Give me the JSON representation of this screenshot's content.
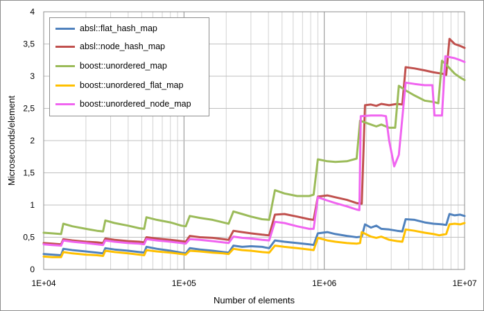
{
  "chart_data": {
    "type": "line",
    "xlabel": "Number of elements",
    "ylabel": "Microseconds/element",
    "xscale": "log",
    "xlim": [
      10000,
      10000000
    ],
    "ylim": [
      0,
      4
    ],
    "x_ticks": [
      {
        "value": 10000,
        "label": "1E+04"
      },
      {
        "value": 100000,
        "label": "1E+05"
      },
      {
        "value": 1000000,
        "label": "1E+06"
      },
      {
        "value": 10000000,
        "label": "1E+07"
      }
    ],
    "y_ticks": [
      {
        "value": 0,
        "label": "0"
      },
      {
        "value": 0.5,
        "label": "0,5"
      },
      {
        "value": 1,
        "label": "1"
      },
      {
        "value": 1.5,
        "label": "1,5"
      },
      {
        "value": 2,
        "label": "2"
      },
      {
        "value": 2.5,
        "label": "2,5"
      },
      {
        "value": 3,
        "label": "3"
      },
      {
        "value": 3.5,
        "label": "3,5"
      },
      {
        "value": 4,
        "label": "4"
      }
    ],
    "grid": true,
    "legend_position": "top-left",
    "series": [
      {
        "name": "absl::flat_hash_map",
        "color": "#4f81bd",
        "points": [
          [
            10000,
            0.24
          ],
          [
            11500,
            0.23
          ],
          [
            13300,
            0.22
          ],
          [
            13800,
            0.32
          ],
          [
            16000,
            0.3
          ],
          [
            20000,
            0.28
          ],
          [
            24000,
            0.26
          ],
          [
            26500,
            0.25
          ],
          [
            27500,
            0.33
          ],
          [
            32000,
            0.31
          ],
          [
            40000,
            0.29
          ],
          [
            48000,
            0.27
          ],
          [
            52000,
            0.26
          ],
          [
            54000,
            0.35
          ],
          [
            64000,
            0.32
          ],
          [
            80000,
            0.29
          ],
          [
            96000,
            0.26
          ],
          [
            103000,
            0.25
          ],
          [
            110000,
            0.33
          ],
          [
            130000,
            0.31
          ],
          [
            160000,
            0.29
          ],
          [
            190000,
            0.27
          ],
          [
            208000,
            0.26
          ],
          [
            225000,
            0.37
          ],
          [
            260000,
            0.35
          ],
          [
            300000,
            0.36
          ],
          [
            360000,
            0.35
          ],
          [
            405000,
            0.33
          ],
          [
            445000,
            0.45
          ],
          [
            520000,
            0.43
          ],
          [
            640000,
            0.41
          ],
          [
            780000,
            0.39
          ],
          [
            840000,
            0.38
          ],
          [
            900000,
            0.56
          ],
          [
            1050000,
            0.58
          ],
          [
            1200000,
            0.55
          ],
          [
            1450000,
            0.52
          ],
          [
            1700000,
            0.5
          ],
          [
            1850000,
            0.51
          ],
          [
            1950000,
            0.7
          ],
          [
            2150000,
            0.65
          ],
          [
            2350000,
            0.68
          ],
          [
            2550000,
            0.63
          ],
          [
            2900000,
            0.62
          ],
          [
            3300000,
            0.6
          ],
          [
            3600000,
            0.59
          ],
          [
            3800000,
            0.78
          ],
          [
            4400000,
            0.77
          ],
          [
            5200000,
            0.73
          ],
          [
            6000000,
            0.71
          ],
          [
            6900000,
            0.7
          ],
          [
            7400000,
            0.69
          ],
          [
            7800000,
            0.86
          ],
          [
            8500000,
            0.84
          ],
          [
            9300000,
            0.85
          ],
          [
            10000000,
            0.83
          ]
        ]
      },
      {
        "name": "absl::node_hash_map",
        "color": "#c0504d",
        "points": [
          [
            10000,
            0.41
          ],
          [
            11500,
            0.4
          ],
          [
            13300,
            0.39
          ],
          [
            13800,
            0.47
          ],
          [
            16000,
            0.45
          ],
          [
            20000,
            0.43
          ],
          [
            24000,
            0.42
          ],
          [
            26500,
            0.41
          ],
          [
            27500,
            0.48
          ],
          [
            32000,
            0.46
          ],
          [
            40000,
            0.44
          ],
          [
            48000,
            0.43
          ],
          [
            52000,
            0.42
          ],
          [
            54000,
            0.5
          ],
          [
            64000,
            0.48
          ],
          [
            80000,
            0.46
          ],
          [
            96000,
            0.44
          ],
          [
            103000,
            0.43
          ],
          [
            110000,
            0.52
          ],
          [
            130000,
            0.5
          ],
          [
            160000,
            0.49
          ],
          [
            190000,
            0.47
          ],
          [
            208000,
            0.46
          ],
          [
            225000,
            0.6
          ],
          [
            260000,
            0.58
          ],
          [
            300000,
            0.56
          ],
          [
            360000,
            0.54
          ],
          [
            405000,
            0.53
          ],
          [
            445000,
            0.85
          ],
          [
            520000,
            0.86
          ],
          [
            640000,
            0.82
          ],
          [
            780000,
            0.78
          ],
          [
            840000,
            0.77
          ],
          [
            900000,
            1.13
          ],
          [
            1050000,
            1.15
          ],
          [
            1200000,
            1.12
          ],
          [
            1450000,
            1.08
          ],
          [
            1700000,
            1.03
          ],
          [
            1850000,
            1.02
          ],
          [
            1950000,
            2.55
          ],
          [
            2150000,
            2.56
          ],
          [
            2350000,
            2.54
          ],
          [
            2550000,
            2.57
          ],
          [
            2900000,
            2.55
          ],
          [
            3300000,
            2.57
          ],
          [
            3600000,
            2.56
          ],
          [
            3800000,
            3.14
          ],
          [
            4400000,
            3.12
          ],
          [
            5200000,
            3.09
          ],
          [
            6000000,
            3.06
          ],
          [
            6900000,
            3.04
          ],
          [
            7400000,
            3.02
          ],
          [
            7800000,
            3.58
          ],
          [
            8500000,
            3.5
          ],
          [
            9300000,
            3.47
          ],
          [
            10000000,
            3.44
          ]
        ]
      },
      {
        "name": "boost::unordered_map",
        "color": "#9bbb59",
        "points": [
          [
            10000,
            0.57
          ],
          [
            11500,
            0.56
          ],
          [
            13300,
            0.55
          ],
          [
            13800,
            0.71
          ],
          [
            16000,
            0.67
          ],
          [
            20000,
            0.63
          ],
          [
            24000,
            0.6
          ],
          [
            26500,
            0.59
          ],
          [
            27500,
            0.76
          ],
          [
            32000,
            0.72
          ],
          [
            40000,
            0.68
          ],
          [
            48000,
            0.64
          ],
          [
            52000,
            0.63
          ],
          [
            54000,
            0.81
          ],
          [
            64000,
            0.77
          ],
          [
            80000,
            0.73
          ],
          [
            96000,
            0.68
          ],
          [
            103000,
            0.67
          ],
          [
            110000,
            0.83
          ],
          [
            130000,
            0.8
          ],
          [
            160000,
            0.77
          ],
          [
            190000,
            0.73
          ],
          [
            208000,
            0.71
          ],
          [
            225000,
            0.9
          ],
          [
            260000,
            0.86
          ],
          [
            300000,
            0.82
          ],
          [
            360000,
            0.78
          ],
          [
            405000,
            0.77
          ],
          [
            445000,
            1.23
          ],
          [
            520000,
            1.18
          ],
          [
            640000,
            1.14
          ],
          [
            780000,
            1.14
          ],
          [
            840000,
            1.16
          ],
          [
            900000,
            1.71
          ],
          [
            1050000,
            1.68
          ],
          [
            1200000,
            1.67
          ],
          [
            1450000,
            1.68
          ],
          [
            1700000,
            1.72
          ],
          [
            1800000,
            2.31
          ],
          [
            2150000,
            2.25
          ],
          [
            2350000,
            2.22
          ],
          [
            2550000,
            2.25
          ],
          [
            2900000,
            2.2
          ],
          [
            3200000,
            2.2
          ],
          [
            3400000,
            2.85
          ],
          [
            3800000,
            2.78
          ],
          [
            4400000,
            2.7
          ],
          [
            5200000,
            2.62
          ],
          [
            6000000,
            2.6
          ],
          [
            6500000,
            2.58
          ],
          [
            6900000,
            3.24
          ],
          [
            7400000,
            3.18
          ],
          [
            8500000,
            3.04
          ],
          [
            9300000,
            2.98
          ],
          [
            10000000,
            2.94
          ]
        ]
      },
      {
        "name": "boost::unordered_flat_map",
        "color": "#ffc000",
        "points": [
          [
            10000,
            0.2
          ],
          [
            11500,
            0.19
          ],
          [
            13300,
            0.19
          ],
          [
            13800,
            0.27
          ],
          [
            16000,
            0.25
          ],
          [
            20000,
            0.23
          ],
          [
            24000,
            0.22
          ],
          [
            26500,
            0.21
          ],
          [
            27500,
            0.29
          ],
          [
            32000,
            0.27
          ],
          [
            40000,
            0.25
          ],
          [
            48000,
            0.23
          ],
          [
            52000,
            0.22
          ],
          [
            54000,
            0.3
          ],
          [
            64000,
            0.28
          ],
          [
            80000,
            0.26
          ],
          [
            96000,
            0.24
          ],
          [
            103000,
            0.23
          ],
          [
            110000,
            0.29
          ],
          [
            130000,
            0.28
          ],
          [
            160000,
            0.26
          ],
          [
            190000,
            0.25
          ],
          [
            208000,
            0.24
          ],
          [
            225000,
            0.32
          ],
          [
            260000,
            0.3
          ],
          [
            300000,
            0.29
          ],
          [
            360000,
            0.27
          ],
          [
            405000,
            0.26
          ],
          [
            445000,
            0.37
          ],
          [
            520000,
            0.35
          ],
          [
            640000,
            0.33
          ],
          [
            780000,
            0.31
          ],
          [
            840000,
            0.3
          ],
          [
            900000,
            0.49
          ],
          [
            1050000,
            0.45
          ],
          [
            1200000,
            0.43
          ],
          [
            1450000,
            0.41
          ],
          [
            1700000,
            0.4
          ],
          [
            1800000,
            0.41
          ],
          [
            1850000,
            0.58
          ],
          [
            2150000,
            0.51
          ],
          [
            2350000,
            0.49
          ],
          [
            2550000,
            0.51
          ],
          [
            2900000,
            0.46
          ],
          [
            3300000,
            0.44
          ],
          [
            3600000,
            0.43
          ],
          [
            3800000,
            0.62
          ],
          [
            4400000,
            0.6
          ],
          [
            5200000,
            0.57
          ],
          [
            6000000,
            0.55
          ],
          [
            6600000,
            0.53
          ],
          [
            7400000,
            0.55
          ],
          [
            7800000,
            0.7
          ],
          [
            8500000,
            0.71
          ],
          [
            9300000,
            0.7
          ],
          [
            10000000,
            0.72
          ]
        ]
      },
      {
        "name": "boost::unordered_node_map",
        "color": "#f064f0",
        "points": [
          [
            10000,
            0.39
          ],
          [
            11500,
            0.38
          ],
          [
            13300,
            0.37
          ],
          [
            13800,
            0.45
          ],
          [
            16000,
            0.43
          ],
          [
            20000,
            0.41
          ],
          [
            24000,
            0.39
          ],
          [
            26500,
            0.38
          ],
          [
            27500,
            0.45
          ],
          [
            32000,
            0.43
          ],
          [
            40000,
            0.41
          ],
          [
            48000,
            0.4
          ],
          [
            52000,
            0.39
          ],
          [
            54000,
            0.47
          ],
          [
            64000,
            0.45
          ],
          [
            80000,
            0.43
          ],
          [
            96000,
            0.41
          ],
          [
            103000,
            0.4
          ],
          [
            110000,
            0.47
          ],
          [
            130000,
            0.46
          ],
          [
            160000,
            0.44
          ],
          [
            190000,
            0.42
          ],
          [
            208000,
            0.41
          ],
          [
            225000,
            0.51
          ],
          [
            260000,
            0.49
          ],
          [
            300000,
            0.48
          ],
          [
            360000,
            0.46
          ],
          [
            405000,
            0.45
          ],
          [
            445000,
            0.74
          ],
          [
            520000,
            0.72
          ],
          [
            640000,
            0.67
          ],
          [
            780000,
            0.63
          ],
          [
            840000,
            0.63
          ],
          [
            900000,
            1.12
          ],
          [
            1050000,
            1.07
          ],
          [
            1200000,
            1.03
          ],
          [
            1450000,
            0.98
          ],
          [
            1700000,
            0.93
          ],
          [
            1780000,
            0.92
          ],
          [
            1820000,
            2.38
          ],
          [
            2150000,
            2.39
          ],
          [
            2550000,
            2.39
          ],
          [
            2750000,
            2.38
          ],
          [
            2900000,
            2.0
          ],
          [
            3150000,
            1.6
          ],
          [
            3400000,
            1.78
          ],
          [
            3800000,
            2.9
          ],
          [
            4400000,
            2.88
          ],
          [
            5200000,
            2.86
          ],
          [
            5900000,
            2.86
          ],
          [
            6100000,
            2.39
          ],
          [
            6900000,
            2.39
          ],
          [
            7300000,
            3.31
          ],
          [
            8500000,
            3.28
          ],
          [
            9300000,
            3.25
          ],
          [
            10000000,
            3.22
          ]
        ]
      }
    ]
  }
}
